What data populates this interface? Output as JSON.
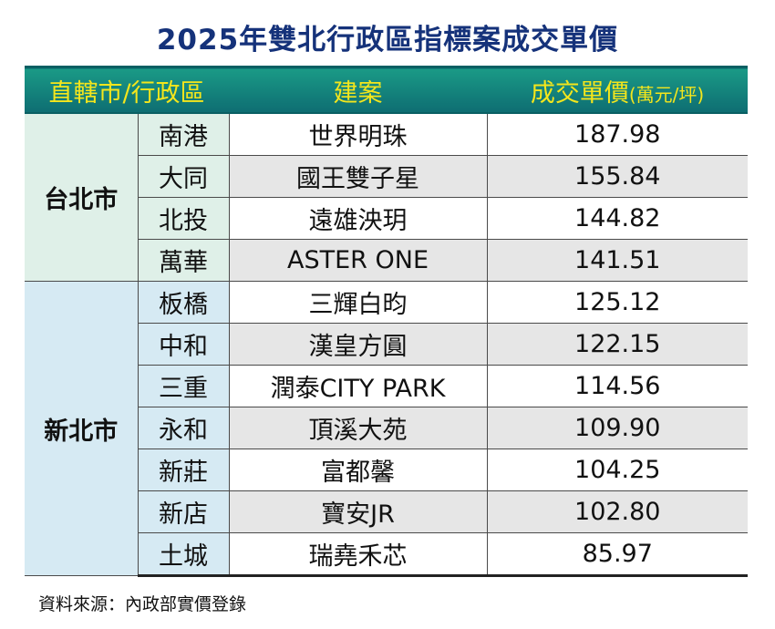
{
  "title": "2025年雙北行政區指標案成交單價",
  "header": {
    "col_city_district": "直轄市/行政區",
    "col_project": "建案",
    "col_price": "成交單價",
    "col_price_unit": "(萬元/坪)"
  },
  "cities": [
    {
      "name": "台北市",
      "rows": [
        {
          "district": "南港",
          "project": "世界明珠",
          "price": "187.98"
        },
        {
          "district": "大同",
          "project": "國王雙子星",
          "price": "155.84"
        },
        {
          "district": "北投",
          "project": "遠雄泱玥",
          "price": "144.82"
        },
        {
          "district": "萬華",
          "project": "ASTER ONE",
          "price": "141.51"
        }
      ]
    },
    {
      "name": "新北市",
      "rows": [
        {
          "district": "板橋",
          "project": "三輝白昀",
          "price": "125.12"
        },
        {
          "district": "中和",
          "project": "漢皇方圓",
          "price": "122.15"
        },
        {
          "district": "三重",
          "project": "潤泰CITY PARK",
          "price": "114.56"
        },
        {
          "district": "永和",
          "project": "頂溪大苑",
          "price": "109.90"
        },
        {
          "district": "新莊",
          "project": "富都馨",
          "price": "104.25"
        },
        {
          "district": "新店",
          "project": "寶安JR",
          "price": "102.80"
        },
        {
          "district": "土城",
          "project": "瑞堯禾芯",
          "price": "85.97"
        }
      ]
    }
  ],
  "source": "資料來源：內政部實價登錄",
  "colors": {
    "title": "#15327a",
    "header_bg": "#12857c",
    "header_text": "#f4e61c",
    "taipei_bg": "#dff0e8",
    "newtaipei_bg": "#d6eaf3",
    "alt_row_bg": "#e6e6e6"
  }
}
